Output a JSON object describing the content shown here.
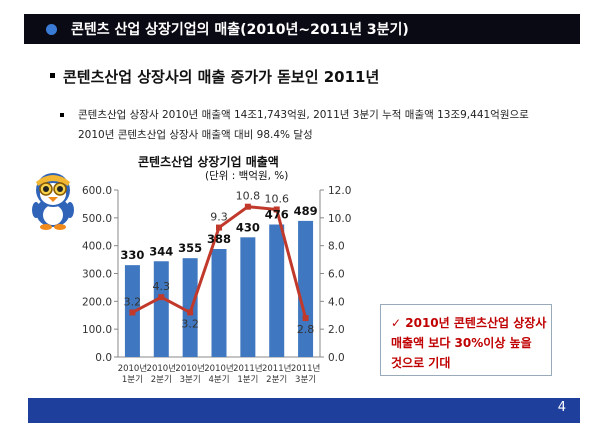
{
  "header": {
    "title": "콘텐츠 산업 상장기업의 매출(2010년~2011년 3분기)"
  },
  "headline": "콘텐츠산업 상장사의 매출 증가가 돋보인 2011년",
  "body": {
    "line1": "콘텐츠산업 상장사 2010년 매출액 14조1,743억원, 2011년 3분기 누적 매출액 13조9,441억원으로",
    "line2": "2010년 콘텐츠산업 상장사 매출액 대비 98.4% 달성"
  },
  "chart_data": {
    "type": "bar",
    "title": "콘텐츠산업 상장기업 매출액",
    "unit": "(단위 : 백억원, %)",
    "categories": [
      [
        "2010년",
        "1분기"
      ],
      [
        "2010년",
        "2분기"
      ],
      [
        "2010년",
        "3분기"
      ],
      [
        "2010년",
        "4분기"
      ],
      [
        "2011년",
        "1분기"
      ],
      [
        "2011년",
        "2분기"
      ],
      [
        "2011년",
        "3분기"
      ]
    ],
    "series": [
      {
        "type": "bar",
        "axis": "left",
        "values": [
          330,
          344,
          355,
          388,
          430,
          476,
          489
        ],
        "color": "#3f78c0"
      },
      {
        "type": "line",
        "axis": "right",
        "values": [
          3.2,
          4.3,
          3.2,
          9.3,
          10.8,
          10.6,
          2.8
        ],
        "color": "#c0392b"
      }
    ],
    "y_left": {
      "min": 0,
      "max": 600,
      "ticks": [
        "0.0",
        "100.0",
        "200.0",
        "300.0",
        "400.0",
        "500.0",
        "600.0"
      ]
    },
    "y_right": {
      "min": 0,
      "max": 12,
      "ticks": [
        "0.0",
        "2.0",
        "4.0",
        "6.0",
        "8.0",
        "10.0",
        "12.0"
      ]
    },
    "bar_labels": [
      "330",
      "344",
      "355",
      "388",
      "430",
      "476",
      "489"
    ],
    "line_labels": [
      "3.2",
      "4.3",
      "3.2",
      "9.3",
      "10.8",
      "10.6",
      "2.8"
    ]
  },
  "callout": {
    "check": "✓",
    "line1": "2010년 콘텐츠산업 상장사",
    "line2": "매출액 보다 30%이상 높을",
    "line3": "것으로 기대"
  },
  "footer": {
    "page_number": "4"
  },
  "colors": {
    "title_bar": "#0a0a14",
    "footer_bar": "#1f3f9c",
    "accent_red": "#c00000"
  },
  "icons": {
    "mascot": "penguin-mascot-icon"
  }
}
